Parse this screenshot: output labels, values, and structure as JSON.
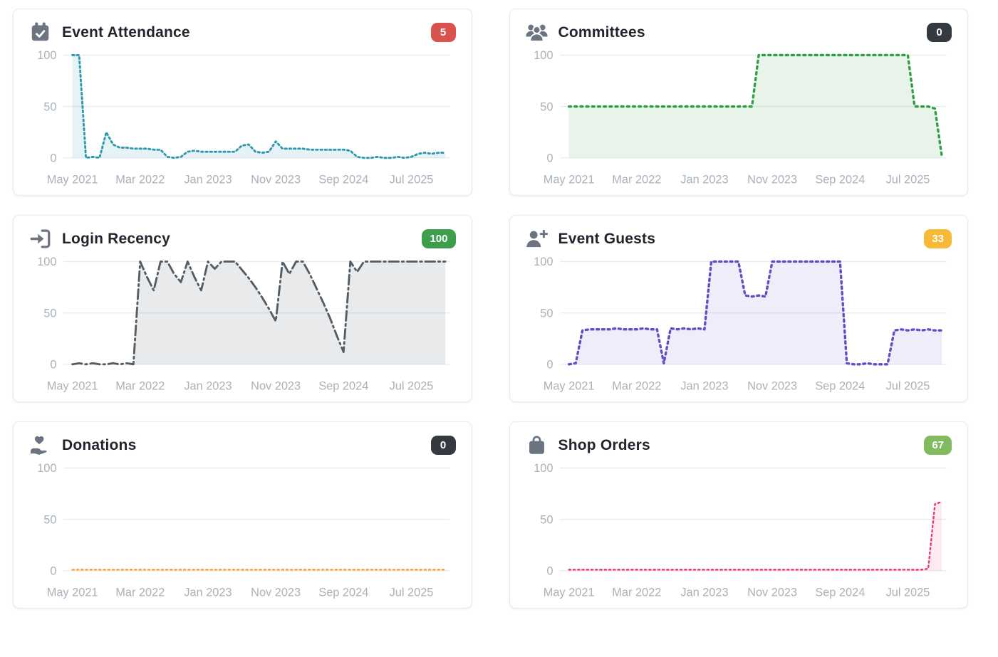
{
  "page": {
    "background": "#ffffff"
  },
  "axis": {
    "x_tick_labels": [
      "May 2021",
      "Mar 2022",
      "Jan 2023",
      "Nov 2023",
      "Sep 2024",
      "Jul 2025"
    ],
    "x_tick_months": [
      0,
      10,
      20,
      30,
      40,
      50
    ],
    "y_ticks": [
      0,
      50,
      100
    ],
    "label_color": "#a9b1ba",
    "grid_color": "#e9edf0"
  },
  "cards": [
    {
      "title": "Event Attendance",
      "icon": "calendar-check-icon",
      "badge": {
        "text": "5",
        "bg": "#d9524e"
      }
    },
    {
      "title": "Committees",
      "icon": "users-icon",
      "badge": {
        "text": "0",
        "bg": "#343a40"
      }
    },
    {
      "title": "Login Recency",
      "icon": "sign-in-icon",
      "badge": {
        "text": "100",
        "bg": "#3f9e4b"
      }
    },
    {
      "title": "Event Guests",
      "icon": "user-plus-icon",
      "badge": {
        "text": "33",
        "bg": "#f9b938"
      }
    },
    {
      "title": "Donations",
      "icon": "hand-holding-heart-icon",
      "badge": {
        "text": "0",
        "bg": "#343a40"
      }
    },
    {
      "title": "Shop Orders",
      "icon": "shopping-bag-icon",
      "badge": {
        "text": "67",
        "bg": "#82ba5f"
      }
    }
  ],
  "chart_data": [
    {
      "title": "Event Attendance",
      "type": "area",
      "x_unit": "month",
      "x_start": "May 2021",
      "ylim": [
        0,
        100
      ],
      "values": [
        100,
        100,
        0,
        1,
        0,
        25,
        13,
        10,
        10,
        9,
        9,
        9,
        8,
        8,
        1,
        0,
        1,
        6,
        7,
        6,
        6,
        6,
        6,
        6,
        6,
        12,
        13,
        6,
        5,
        6,
        16,
        9,
        9,
        9,
        9,
        8,
        8,
        8,
        8,
        8,
        8,
        7,
        1,
        0,
        0,
        1,
        0,
        0,
        1,
        0,
        1,
        4,
        5,
        4,
        5,
        5
      ],
      "line_color": "#2e98ac",
      "fill_color": "rgba(46,152,172,0.12)",
      "dash": "2.5 4",
      "stroke_width": 3
    },
    {
      "title": "Committees",
      "type": "area",
      "x_unit": "month",
      "x_start": "May 2021",
      "ylim": [
        0,
        100
      ],
      "values": [
        50,
        50,
        50,
        50,
        50,
        50,
        50,
        50,
        50,
        50,
        50,
        50,
        50,
        50,
        50,
        50,
        50,
        50,
        50,
        50,
        50,
        50,
        50,
        50,
        50,
        50,
        50,
        50,
        100,
        100,
        100,
        100,
        100,
        100,
        100,
        100,
        100,
        100,
        100,
        100,
        100,
        100,
        100,
        100,
        100,
        100,
        100,
        100,
        100,
        100,
        100,
        50,
        50,
        50,
        48,
        2
      ],
      "line_color": "#2f9e44",
      "fill_color": "rgba(47,158,68,0.11)",
      "dash": "3 5.5",
      "stroke_width": 3.5
    },
    {
      "title": "Login Recency",
      "type": "area",
      "x_unit": "month",
      "x_start": "May 2021",
      "ylim": [
        0,
        100
      ],
      "values": [
        0,
        1,
        0,
        1,
        0,
        0,
        1,
        0,
        1,
        0,
        100,
        85,
        72,
        100,
        100,
        88,
        80,
        100,
        85,
        72,
        100,
        93,
        100,
        100,
        100,
        92,
        84,
        75,
        65,
        54,
        42,
        100,
        88,
        100,
        100,
        88,
        74,
        60,
        45,
        28,
        12,
        100,
        90,
        100,
        100,
        100,
        100,
        100,
        100,
        100,
        100,
        100,
        100,
        100,
        100,
        100
      ],
      "line_color": "#555d64",
      "fill_color": "rgba(85,93,100,0.13)",
      "dash": "14 5 2.5 5",
      "stroke_width": 3
    },
    {
      "title": "Event Guests",
      "type": "area",
      "x_unit": "month",
      "x_start": "May 2021",
      "ylim": [
        0,
        100
      ],
      "values": [
        0,
        1,
        33,
        34,
        34,
        34,
        34,
        35,
        34,
        34,
        34,
        35,
        34,
        34,
        1,
        35,
        34,
        35,
        34,
        35,
        34,
        100,
        100,
        100,
        100,
        100,
        67,
        66,
        67,
        66,
        100,
        100,
        100,
        100,
        100,
        100,
        100,
        100,
        100,
        100,
        100,
        1,
        0,
        0,
        1,
        0,
        0,
        0,
        33,
        34,
        33,
        34,
        33,
        34,
        33,
        33
      ],
      "line_color": "#5d50c4",
      "fill_color": "rgba(93,80,196,0.10)",
      "dash": "3 5",
      "stroke_width": 3.5
    },
    {
      "title": "Donations",
      "type": "area",
      "x_unit": "month",
      "x_start": "May 2021",
      "ylim": [
        0,
        100
      ],
      "values": [
        1,
        1,
        1,
        1,
        1,
        1,
        1,
        1,
        1,
        1,
        1,
        1,
        1,
        1,
        1,
        1,
        1,
        1,
        1,
        1,
        1,
        1,
        1,
        1,
        1,
        1,
        1,
        1,
        1,
        1,
        1,
        1,
        1,
        1,
        1,
        1,
        1,
        1,
        1,
        1,
        1,
        1,
        1,
        1,
        1,
        1,
        1,
        1,
        1,
        1,
        1,
        1,
        1,
        1,
        1,
        1
      ],
      "line_color": "#f5a33c",
      "fill_color": "rgba(245,163,60,0.08)",
      "dash": "2.5 4",
      "stroke_width": 2.5
    },
    {
      "title": "Shop Orders",
      "type": "area",
      "x_unit": "month",
      "x_start": "May 2021",
      "ylim": [
        0,
        100
      ],
      "values": [
        1,
        1,
        1,
        1,
        1,
        1,
        1,
        1,
        1,
        1,
        1,
        1,
        1,
        1,
        1,
        1,
        1,
        1,
        1,
        1,
        1,
        1,
        1,
        1,
        1,
        1,
        1,
        1,
        1,
        1,
        1,
        1,
        1,
        1,
        1,
        1,
        1,
        1,
        1,
        1,
        1,
        1,
        1,
        1,
        1,
        1,
        1,
        1,
        1,
        1,
        1,
        1,
        1,
        2,
        65,
        67
      ],
      "line_color": "#ea3a6d",
      "fill_color": "rgba(234,58,109,0.10)",
      "dash": "2.5 4",
      "stroke_width": 2.5
    }
  ]
}
